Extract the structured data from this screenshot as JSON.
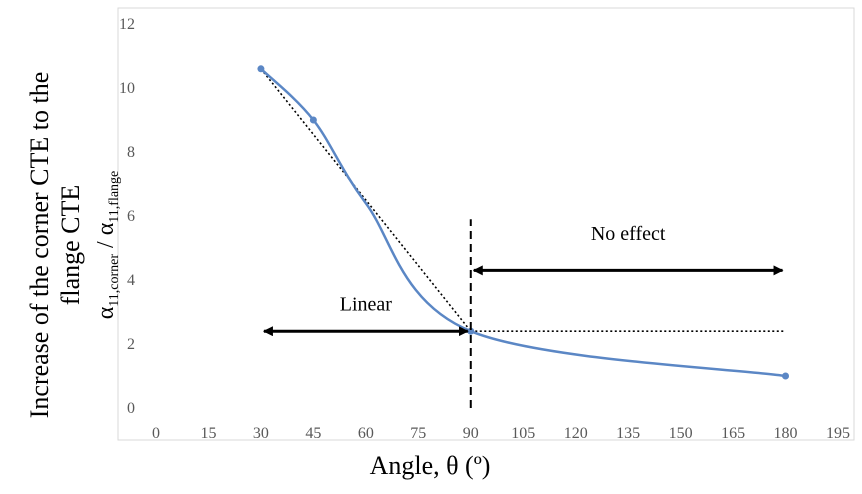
{
  "chart_data": {
    "type": "line",
    "xlabel": "Angle, θ (º)",
    "ylabel_line1": "Increase of the corner CTE to the",
    "ylabel_line2": "flange CTE",
    "ylabel_line3_prefix": "α",
    "ylabel_line3_sub1": "11,corner",
    "ylabel_line3_mid": " / α",
    "ylabel_line3_sub2": "11,flange",
    "xlim": [
      0,
      195
    ],
    "ylim": [
      0,
      12
    ],
    "x_ticks": [
      "0",
      "15",
      "30",
      "45",
      "60",
      "75",
      "90",
      "105",
      "120",
      "135",
      "150",
      "165",
      "180",
      "195"
    ],
    "y_ticks": [
      "0",
      "2",
      "4",
      "6",
      "8",
      "10",
      "12"
    ],
    "grid": false,
    "series": [
      {
        "color": "#5b87c5",
        "points": [
          [
            30,
            10.6
          ],
          [
            45,
            9.0
          ],
          [
            60,
            6.4
          ],
          [
            90,
            2.4
          ],
          [
            180,
            1.0
          ]
        ],
        "markers_at": [
          [
            30,
            10.6
          ],
          [
            45,
            9.0
          ],
          [
            90,
            2.4
          ],
          [
            180,
            1.0
          ]
        ]
      }
    ],
    "trendlines": [
      {
        "style": "dotted",
        "color": "#000000",
        "from": [
          30,
          10.6
        ],
        "to": [
          90,
          2.4
        ]
      },
      {
        "style": "dotted",
        "color": "#000000",
        "from": [
          90,
          2.4
        ],
        "to": [
          180,
          2.4
        ]
      }
    ],
    "vline": {
      "x": 90,
      "style": "dashed",
      "color": "#000000",
      "from_y": 0,
      "to_y": 5.9
    },
    "annotations": [
      {
        "text": "Linear",
        "text_x": 60,
        "text_y": 3.05,
        "arrow_from": [
          30,
          2.4
        ],
        "arrow_to": [
          90,
          2.4
        ]
      },
      {
        "text": "No effect",
        "text_x": 135,
        "text_y": 5.25,
        "arrow_from": [
          90,
          4.3
        ],
        "arrow_to": [
          180,
          4.3
        ]
      }
    ]
  }
}
